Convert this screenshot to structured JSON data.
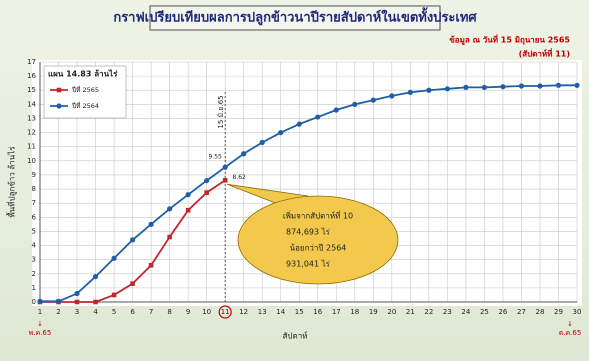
{
  "chart_data": {
    "type": "line",
    "title": "กราฟเปรียบเทียบผลการปลูกข้าวนาปีรายสัปดาห์ในเขตทั้งประเทศ",
    "subtitle": [
      "ข้อมูล ณ วันที่ 15 มิถุนายน 2565",
      "(สัปดาห์ที่ 11)"
    ],
    "y_label": "พื้นที่ปลูกข้าว ล้านไร่",
    "x_label": "สัปดาห์",
    "x_start_label": "พ.ค.65",
    "x_end_label": "ต.ค.65",
    "plan_label": "แผน  14.83  ล้านไร่",
    "marker_label": "15 มิ.ย.65",
    "marker_x": 11,
    "point_labels": [
      "9.55",
      "8.62"
    ],
    "callout": [
      "เพิ่มจากสัปดาห์ที่ 10",
      "874,693    ไร่",
      "น้อยกว่าปี 2564",
      "931,041    ไร่"
    ],
    "x": [
      1,
      2,
      3,
      4,
      5,
      6,
      7,
      8,
      9,
      10,
      11,
      12,
      13,
      14,
      15,
      16,
      17,
      18,
      19,
      20,
      21,
      22,
      23,
      24,
      25,
      26,
      27,
      28,
      29,
      30
    ],
    "series": [
      {
        "name": "ปีที่ 2565",
        "color": "#c0282d",
        "values": [
          0,
          0,
          0,
          0,
          0.5,
          1.3,
          2.6,
          4.6,
          6.5,
          7.75,
          8.62,
          null,
          null,
          null,
          null,
          null,
          null,
          null,
          null,
          null,
          null,
          null,
          null,
          null,
          null,
          null,
          null,
          null,
          null,
          null
        ]
      },
      {
        "name": "ปีที่ 2564",
        "color": "#1f5fa8",
        "values": [
          0.05,
          0.05,
          0.6,
          1.8,
          3.1,
          4.4,
          5.5,
          6.6,
          7.6,
          8.6,
          9.55,
          10.5,
          11.3,
          12.0,
          12.6,
          13.1,
          13.6,
          14.0,
          14.3,
          14.6,
          14.85,
          15.0,
          15.1,
          15.2,
          15.2,
          15.25,
          15.3,
          15.3,
          15.35,
          15.35
        ]
      }
    ],
    "xlim": [
      1,
      30
    ],
    "xticks": [
      1,
      2,
      3,
      4,
      5,
      6,
      7,
      8,
      9,
      10,
      11,
      12,
      13,
      14,
      15,
      16,
      17,
      18,
      19,
      20,
      21,
      22,
      23,
      24,
      25,
      26,
      27,
      28,
      29,
      30
    ],
    "ylim": [
      0,
      17
    ],
    "yticks": [
      0,
      1,
      2,
      3,
      4,
      5,
      6,
      7,
      8,
      9,
      10,
      11,
      12,
      13,
      14,
      15,
      16,
      17
    ],
    "grid": true
  }
}
